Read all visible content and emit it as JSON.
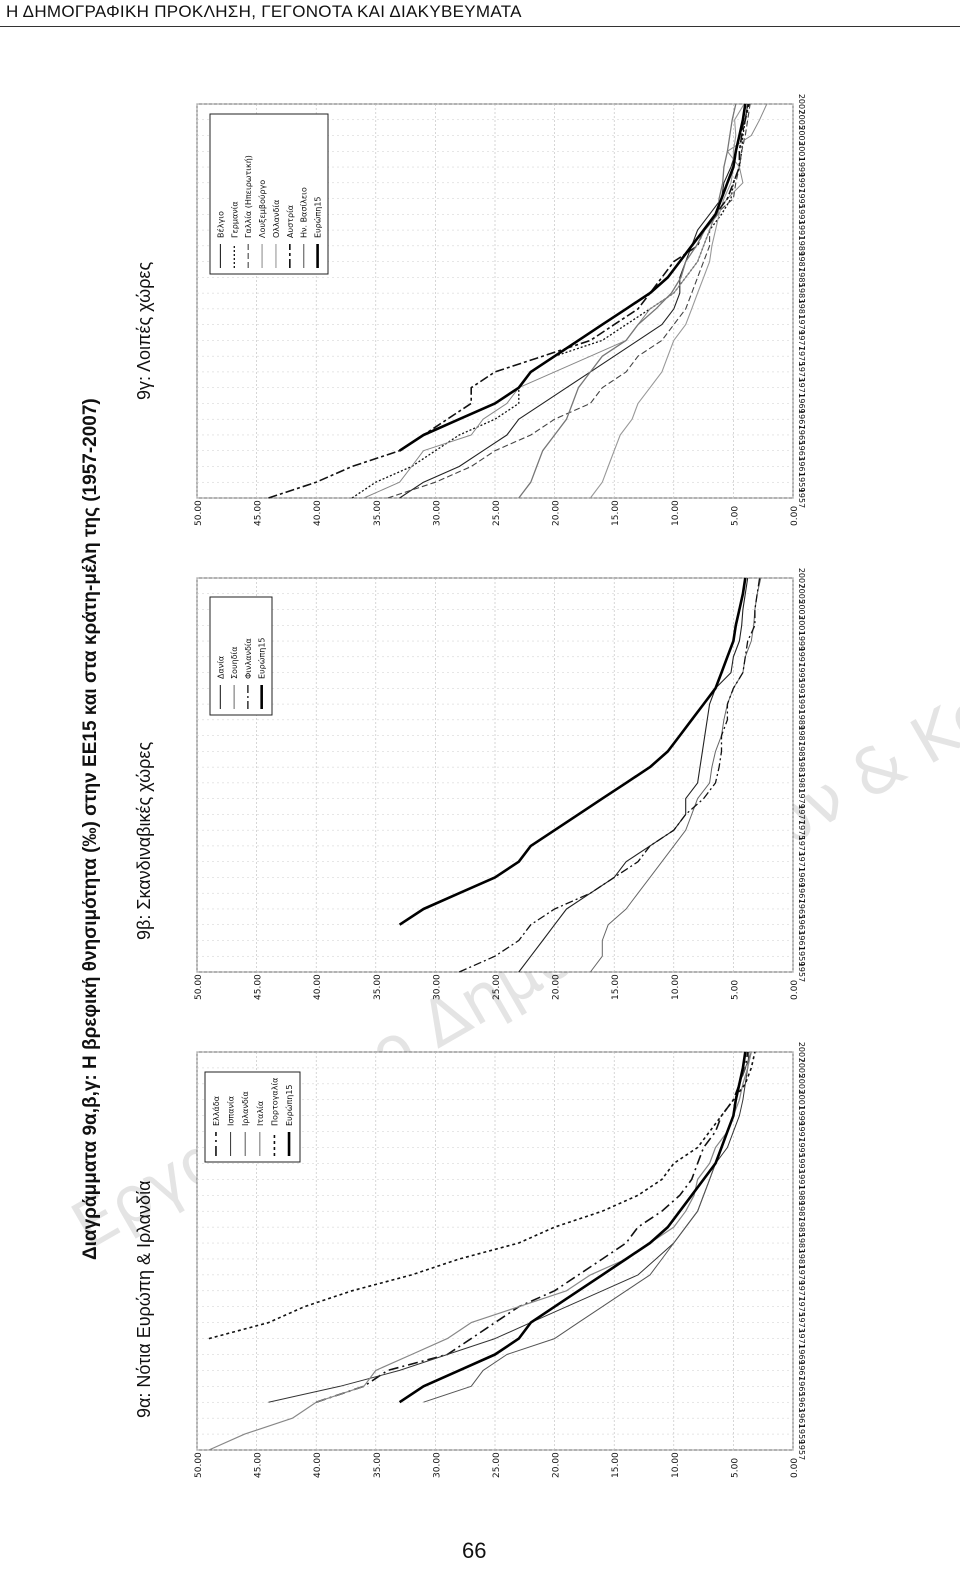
{
  "header": {
    "running_title": "Η ΔΗΜΟΓΡΑΦΙΚΗ ΠΡΟΚΛΗΣΗ, ΓΕΓΟΝΟΤΑ ΚΑΙ ΔΙΑΚΥΒΕΥΜΑΤΑ"
  },
  "figure": {
    "main_title": "Διαγράμματα 9α,β,γ: Η βρεφική θνησιμότητα (‰) στην ΕΕ15 και στα κράτη-μέλη της (1957-2007)"
  },
  "watermark": "Εργαστήριο Δημογραφικών & Κοινωνικών Αναλύσεων",
  "page_number": "66",
  "chart_data": [
    {
      "type": "line",
      "subtitle": "9α: Νότια Ευρώπη & Ιρλανδία",
      "ylim": [
        0,
        50
      ],
      "y_ticks": [
        "50.00",
        "45.00",
        "40.00",
        "35.00",
        "30.00",
        "25.00",
        "20.00",
        "15.00",
        "10.00",
        "5.00",
        "0.00"
      ],
      "x": [
        1957,
        1959,
        1961,
        1963,
        1965,
        1967,
        1969,
        1971,
        1973,
        1975,
        1977,
        1979,
        1981,
        1983,
        1985,
        1987,
        1989,
        1991,
        1993,
        1995,
        1997,
        1999,
        2001,
        2003,
        2005,
        2007
      ],
      "x_ticks": [
        "1957",
        "1959",
        "1961",
        "1963",
        "1965",
        "1967",
        "1969",
        "1971",
        "1973",
        "1975",
        "1977",
        "1979",
        "1981",
        "1983",
        "1985",
        "1987",
        "1989",
        "1991",
        "1993",
        "1995",
        "1997",
        "1999",
        "2001",
        "2003",
        "2005",
        "2007"
      ],
      "legend": [
        "Ελλάδα",
        "Ισπανία",
        "Ιρλανδία",
        "Ιταλία",
        "Πορτογαλία",
        "Ευρώπη15"
      ],
      "series": [
        {
          "name": "Ελλάδα",
          "dash": "10,4,2,4",
          "width": 1.6,
          "color": "#111111",
          "values": [
            null,
            null,
            null,
            40,
            36,
            34,
            29,
            27,
            25,
            23,
            20,
            18,
            16,
            14,
            13,
            11,
            9.5,
            8.5,
            8,
            7.5,
            6.5,
            6,
            5,
            4.5,
            4,
            3.8
          ]
        },
        {
          "name": "Ισπανία",
          "dash": "",
          "width": 1,
          "color": "#333333",
          "values": [
            null,
            null,
            null,
            44,
            38,
            33,
            29,
            25,
            22,
            19,
            16,
            13,
            11.5,
            10,
            9,
            8,
            7.5,
            7,
            6.5,
            5.5,
            5,
            4.5,
            4.2,
            4,
            3.8,
            3.7
          ]
        },
        {
          "name": "Ιρλανδία",
          "dash": "",
          "width": 1,
          "color": "#555555",
          "values": [
            null,
            null,
            null,
            31,
            27,
            26,
            24,
            20,
            18,
            16,
            14,
            12,
            11,
            10,
            9,
            8,
            7.5,
            7,
            6.5,
            6,
            5.5,
            5,
            4.8,
            4.5,
            4,
            3.5
          ]
        },
        {
          "name": "Ιταλία",
          "dash": "",
          "width": 1.2,
          "color": "#888888",
          "values": [
            49,
            46,
            42,
            40,
            36,
            35,
            32,
            29,
            27,
            23,
            19,
            17,
            14,
            12,
            10,
            9,
            8.3,
            8,
            7,
            6.5,
            5.5,
            5,
            4.5,
            4.2,
            3.8,
            3.5
          ]
        },
        {
          "name": "Πορτογαλία",
          "dash": "3,3",
          "width": 1.6,
          "color": "#111111",
          "values": [
            null,
            null,
            null,
            null,
            null,
            null,
            null,
            49,
            44,
            41,
            37,
            32,
            28,
            23,
            20,
            16,
            13,
            11,
            10,
            8,
            7,
            6,
            5,
            4,
            3.5,
            3.2
          ]
        },
        {
          "name": "Ευρώπη15",
          "dash": "",
          "width": 2.6,
          "color": "#000000",
          "values": [
            null,
            null,
            null,
            33,
            31,
            28,
            25,
            23,
            22,
            20,
            18,
            16,
            14,
            12,
            10.5,
            9.5,
            8.5,
            7.5,
            6.5,
            6,
            5.5,
            5,
            4.8,
            4.5,
            4.2,
            4
          ]
        }
      ]
    },
    {
      "type": "line",
      "subtitle": "9β: Σκανδιναβικές χώρες",
      "ylim": [
        0,
        50
      ],
      "y_ticks": [
        "50.00",
        "45.00",
        "40.00",
        "35.00",
        "30.00",
        "25.00",
        "20.00",
        "15.00",
        "10.00",
        "5.00",
        "0.00"
      ],
      "x": [
        1957,
        1959,
        1961,
        1963,
        1965,
        1967,
        1969,
        1971,
        1973,
        1975,
        1977,
        1979,
        1981,
        1983,
        1985,
        1987,
        1989,
        1991,
        1993,
        1995,
        1997,
        1999,
        2001,
        2003,
        2005,
        2007
      ],
      "x_ticks": [
        "1957",
        "1959",
        "1961",
        "1963",
        "1965",
        "1967",
        "1969",
        "1971",
        "1973",
        "1975",
        "1977",
        "1979",
        "1981",
        "1983",
        "1985",
        "1987",
        "1989",
        "1991",
        "1993",
        "1995",
        "1997",
        "1999",
        "2001",
        "2003",
        "2005",
        "2007"
      ],
      "legend": [
        "Δανία",
        "Σουηδία",
        "Φινλανδία",
        "Ευρώπη15"
      ],
      "series": [
        {
          "name": "Δανία",
          "dash": "",
          "width": 1.1,
          "color": "#222222",
          "values": [
            23,
            22,
            21,
            20,
            19,
            17,
            15,
            14,
            12,
            10,
            9,
            9,
            8,
            7.8,
            7.6,
            7.4,
            7.2,
            7,
            6.5,
            5.2,
            5,
            4.5,
            4.3,
            4.2,
            4,
            3.8
          ]
        },
        {
          "name": "Σουηδία",
          "dash": "",
          "width": 1,
          "color": "#666666",
          "values": [
            17,
            16,
            16,
            15.5,
            14,
            13,
            12,
            11,
            10,
            9,
            8.5,
            8,
            7,
            6.8,
            6.5,
            6,
            5.8,
            5.5,
            5,
            4.2,
            4,
            3.5,
            3.3,
            3.2,
            3,
            2.7
          ]
        },
        {
          "name": "Φινλανδία",
          "dash": "8,3,2,3",
          "width": 1.3,
          "color": "#111111",
          "values": [
            28,
            25,
            23,
            22,
            20,
            17,
            15,
            13,
            12,
            10,
            9,
            7.5,
            6.5,
            6.2,
            6,
            6,
            5.5,
            5.5,
            5,
            4.2,
            4,
            3.8,
            3.2,
            3.2,
            3,
            2.8
          ]
        },
        {
          "name": "Ευρώπη15",
          "dash": "",
          "width": 2.6,
          "color": "#000000",
          "values": [
            null,
            null,
            null,
            33,
            31,
            28,
            25,
            23,
            22,
            20,
            18,
            16,
            14,
            12,
            10.5,
            9.5,
            8.5,
            7.5,
            6.5,
            6,
            5.5,
            5,
            4.8,
            4.5,
            4.2,
            4
          ]
        }
      ]
    },
    {
      "type": "line",
      "subtitle": "9γ: Λοιπές χώρες",
      "ylim": [
        0,
        50
      ],
      "y_ticks": [
        "50.00",
        "45.00",
        "40.00",
        "35.00",
        "30.00",
        "25.00",
        "20.00",
        "15.00",
        "10.00",
        "5.00",
        "0.00"
      ],
      "x": [
        1957,
        1959,
        1961,
        1963,
        1965,
        1967,
        1969,
        1971,
        1973,
        1975,
        1977,
        1979,
        1981,
        1983,
        1985,
        1987,
        1989,
        1991,
        1993,
        1995,
        1997,
        1999,
        2001,
        2003,
        2005,
        2007
      ],
      "x_ticks": [
        "1957",
        "1959",
        "1961",
        "1963",
        "1965",
        "1967",
        "1969",
        "1971",
        "1973",
        "1975",
        "1977",
        "1979",
        "1981",
        "1983",
        "1985",
        "1987",
        "1989",
        "1991",
        "1993",
        "1995",
        "1997",
        "1999",
        "2001",
        "2003",
        "2005",
        "2007"
      ],
      "legend": [
        "Βέλγιο",
        "Γερμανία",
        "Γαλλία (Ηπειρωτική)",
        "Λουξεμβούργο",
        "Ολλανδία",
        "Αυστρία",
        "Ην. Βασίλειο",
        "Ευρώπη15"
      ],
      "series": [
        {
          "name": "Βέλγιο",
          "dash": "",
          "width": 1.1,
          "color": "#222222",
          "values": [
            33,
            31,
            28,
            26,
            24,
            23,
            21,
            19,
            17,
            15,
            13,
            11,
            10,
            9.5,
            9.5,
            9,
            8.5,
            8,
            7,
            6,
            5.8,
            5.2,
            4.8,
            4.5,
            4,
            3.8
          ]
        },
        {
          "name": "Γερμανία",
          "dash": "2,2",
          "width": 1.3,
          "color": "#111111",
          "values": [
            37,
            35,
            32,
            30,
            28,
            25,
            23,
            23,
            22,
            20,
            16,
            14,
            12,
            10,
            9,
            8,
            7.5,
            7,
            6,
            5.2,
            5,
            4.5,
            4.3,
            4.2,
            4,
            3.8
          ]
        },
        {
          "name": "Γαλλία (Ηπειρωτική)",
          "dash": "6,3",
          "width": 1.1,
          "color": "#444444",
          "values": [
            34,
            30,
            27,
            25,
            22,
            20,
            17,
            16,
            14,
            13,
            11,
            10,
            9,
            8.5,
            8,
            7.5,
            7,
            7,
            6.5,
            5,
            4.8,
            4.5,
            4.3,
            4,
            3.8,
            3.6
          ]
        },
        {
          "name": "Λουξεμβούργο",
          "dash": "",
          "width": 1,
          "color": "#888888",
          "values": [
            36,
            33,
            32,
            31,
            27,
            26,
            24,
            23,
            20,
            17,
            14,
            13,
            12,
            10,
            9,
            8,
            7.5,
            7,
            6.5,
            5.5,
            4.2,
            4.5,
            5.5,
            3.5,
            2.8,
            2.2
          ]
        },
        {
          "name": "Ολλανδία",
          "dash": "",
          "width": 1.1,
          "color": "#999999",
          "values": [
            17,
            16,
            15.5,
            15,
            14.5,
            13.5,
            13,
            12,
            11,
            10.5,
            10,
            9,
            8.5,
            8,
            7.5,
            7,
            6.8,
            6.5,
            6.2,
            5.8,
            5.2,
            5,
            5,
            4.8,
            4.9,
            4.1
          ]
        },
        {
          "name": "Αυστρία",
          "dash": "9,3,3,3",
          "width": 1.6,
          "color": "#111111",
          "values": [
            44,
            40,
            37,
            33,
            31,
            29,
            27,
            27,
            25,
            21,
            17,
            15,
            13,
            12,
            11,
            10,
            8,
            7.5,
            6.5,
            5.5,
            5,
            4.5,
            4.5,
            4.3,
            4,
            3.7
          ]
        },
        {
          "name": "Ην. Βασίλειο",
          "dash": "",
          "width": 1.3,
          "color": "#777777",
          "values": [
            23,
            22,
            21.5,
            21,
            20,
            19,
            18.5,
            18,
            17,
            16,
            14,
            13,
            11.5,
            10.2,
            9.4,
            9,
            8.1,
            7.4,
            6.3,
            6.2,
            5.9,
            5.8,
            5.5,
            5.3,
            5.1,
            4.8
          ]
        },
        {
          "name": "Ευρώπη15",
          "dash": "",
          "width": 2.6,
          "color": "#000000",
          "values": [
            null,
            null,
            null,
            33,
            31,
            28,
            25,
            23,
            22,
            20,
            18,
            16,
            14,
            12,
            10.5,
            9.5,
            8.5,
            7.5,
            6.5,
            6,
            5.5,
            5,
            4.8,
            4.5,
            4.2,
            4
          ]
        }
      ]
    }
  ]
}
